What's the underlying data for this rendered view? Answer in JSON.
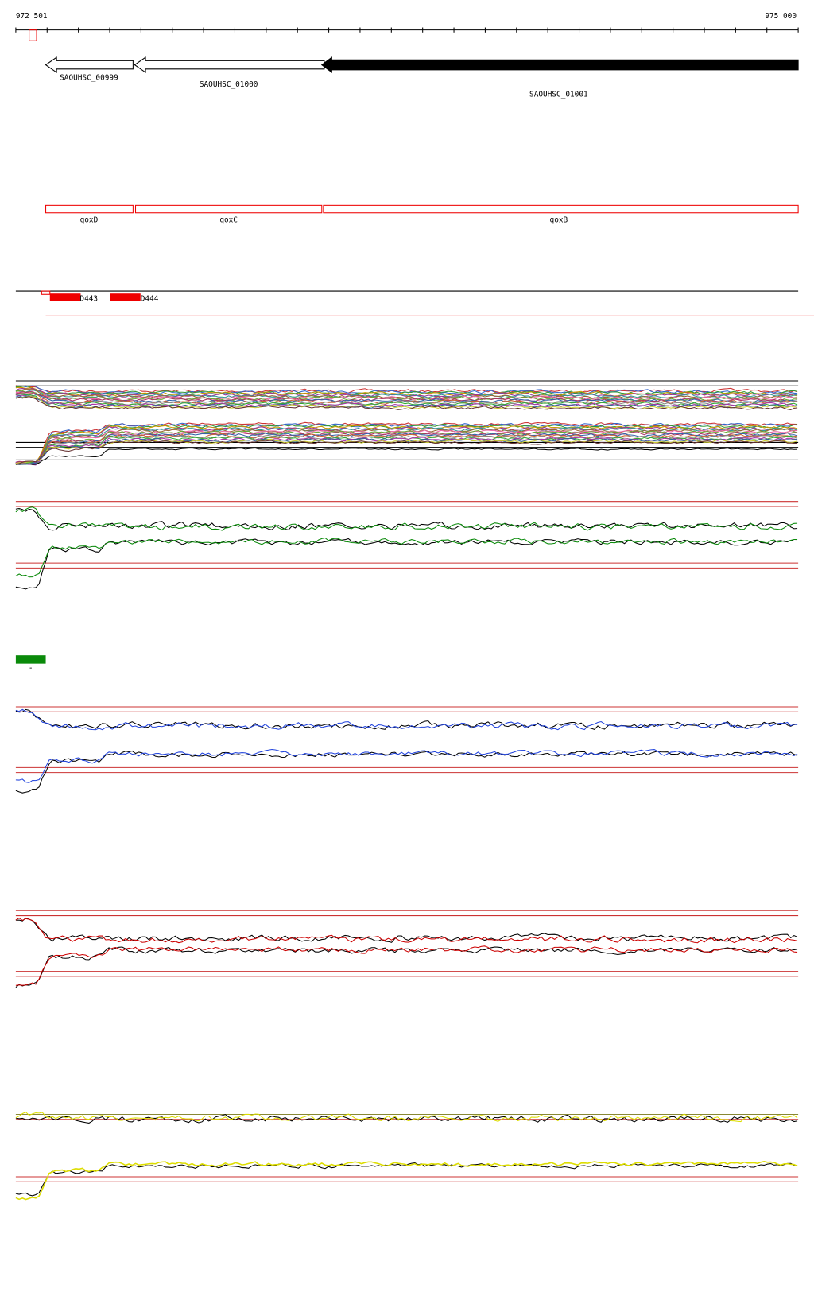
{
  "ruler": {
    "start": "972 501",
    "end": "975 000"
  },
  "genes": [
    "SAOUHSC_00999",
    "SAOUHSC_01000",
    "SAOUHSC_01001"
  ],
  "features": [
    "qoxD",
    "qoxC",
    "qoxB"
  ],
  "probes": [
    "D443",
    "D444"
  ],
  "marker": {
    "label": "-"
  }
}
